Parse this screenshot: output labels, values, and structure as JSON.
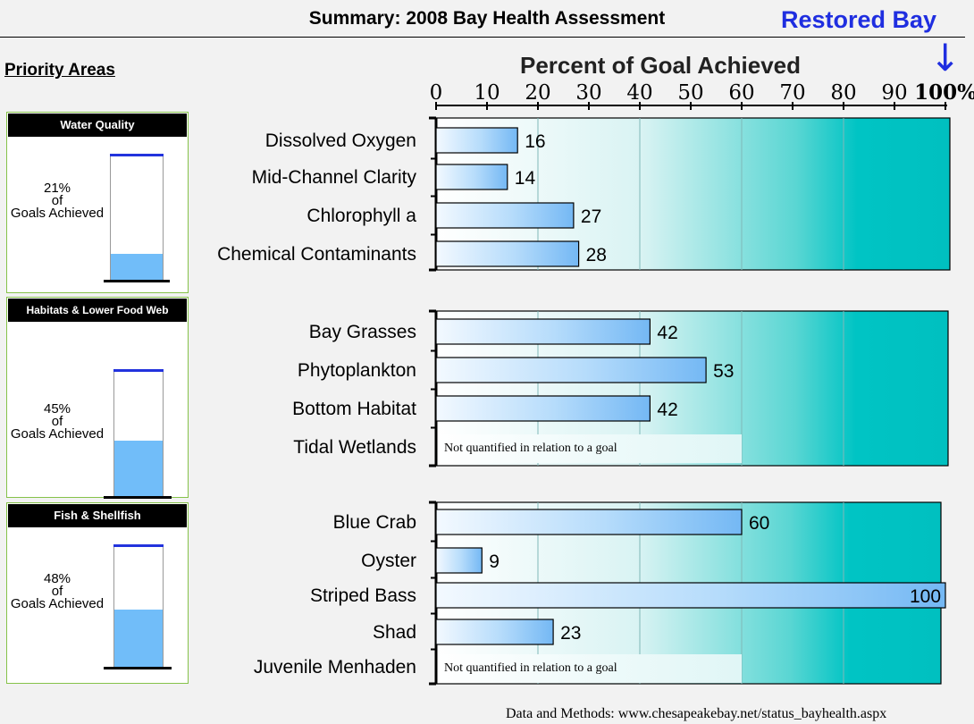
{
  "header": {
    "title": "Summary: 2008 Bay Health Assessment",
    "restored_label": "Restored Bay",
    "restored_arrow": "↓"
  },
  "sidebar": {
    "heading": "Priority Areas",
    "panels": [
      {
        "title": "Water Quality",
        "percent": "21%",
        "of": "of",
        "caption": "Goals Achieved",
        "value": 21
      },
      {
        "title": "Habitats & Lower Food Web",
        "percent": "45%",
        "of": "of",
        "caption": "Goals Achieved",
        "value": 45
      },
      {
        "title": "Fish & Shellfish",
        "percent": "48%",
        "of": "of",
        "caption": "Goals Achieved",
        "value": 48
      }
    ]
  },
  "footer": {
    "text": "Data and Methods: www.chesapeakebay.net/status_bayhealth.aspx"
  },
  "colors": {
    "accent": "#1f2ee0",
    "teal": "#00c4c4",
    "bar": "#8cc8f8",
    "panel_border": "#86c24a",
    "gauge_fill": "#71bdf9"
  },
  "chart_data": {
    "type": "bar",
    "orientation": "horizontal",
    "title": "Percent of Goal Achieved",
    "xlim": [
      0,
      100
    ],
    "ticks": [
      "0",
      "10",
      "20",
      "30",
      "40",
      "50",
      "60",
      "70",
      "80",
      "90",
      "100%"
    ],
    "grid": true,
    "groups": [
      {
        "name": "Water Quality",
        "categories": [
          "Dissolved Oxygen",
          "Mid-Channel Clarity",
          "Chlorophyll a",
          "Chemical Contaminants"
        ],
        "values": [
          16,
          14,
          27,
          28
        ],
        "labels": [
          "16",
          "14",
          "27",
          "28"
        ]
      },
      {
        "name": "Habitats & Lower Food Web",
        "categories": [
          "Bay Grasses",
          "Phytoplankton",
          "Bottom Habitat",
          "Tidal Wetlands"
        ],
        "values": [
          42,
          53,
          42,
          null
        ],
        "labels": [
          "42",
          "53",
          "42",
          "Not quantified in relation to a goal"
        ]
      },
      {
        "name": "Fish & Shellfish",
        "categories": [
          "Blue Crab",
          "Oyster",
          "Striped Bass",
          "Shad",
          "Juvenile Menhaden"
        ],
        "values": [
          60,
          9,
          100,
          23,
          null
        ],
        "labels": [
          "60",
          "9",
          "100",
          "23",
          "Not quantified in relation to a goal"
        ]
      }
    ]
  }
}
